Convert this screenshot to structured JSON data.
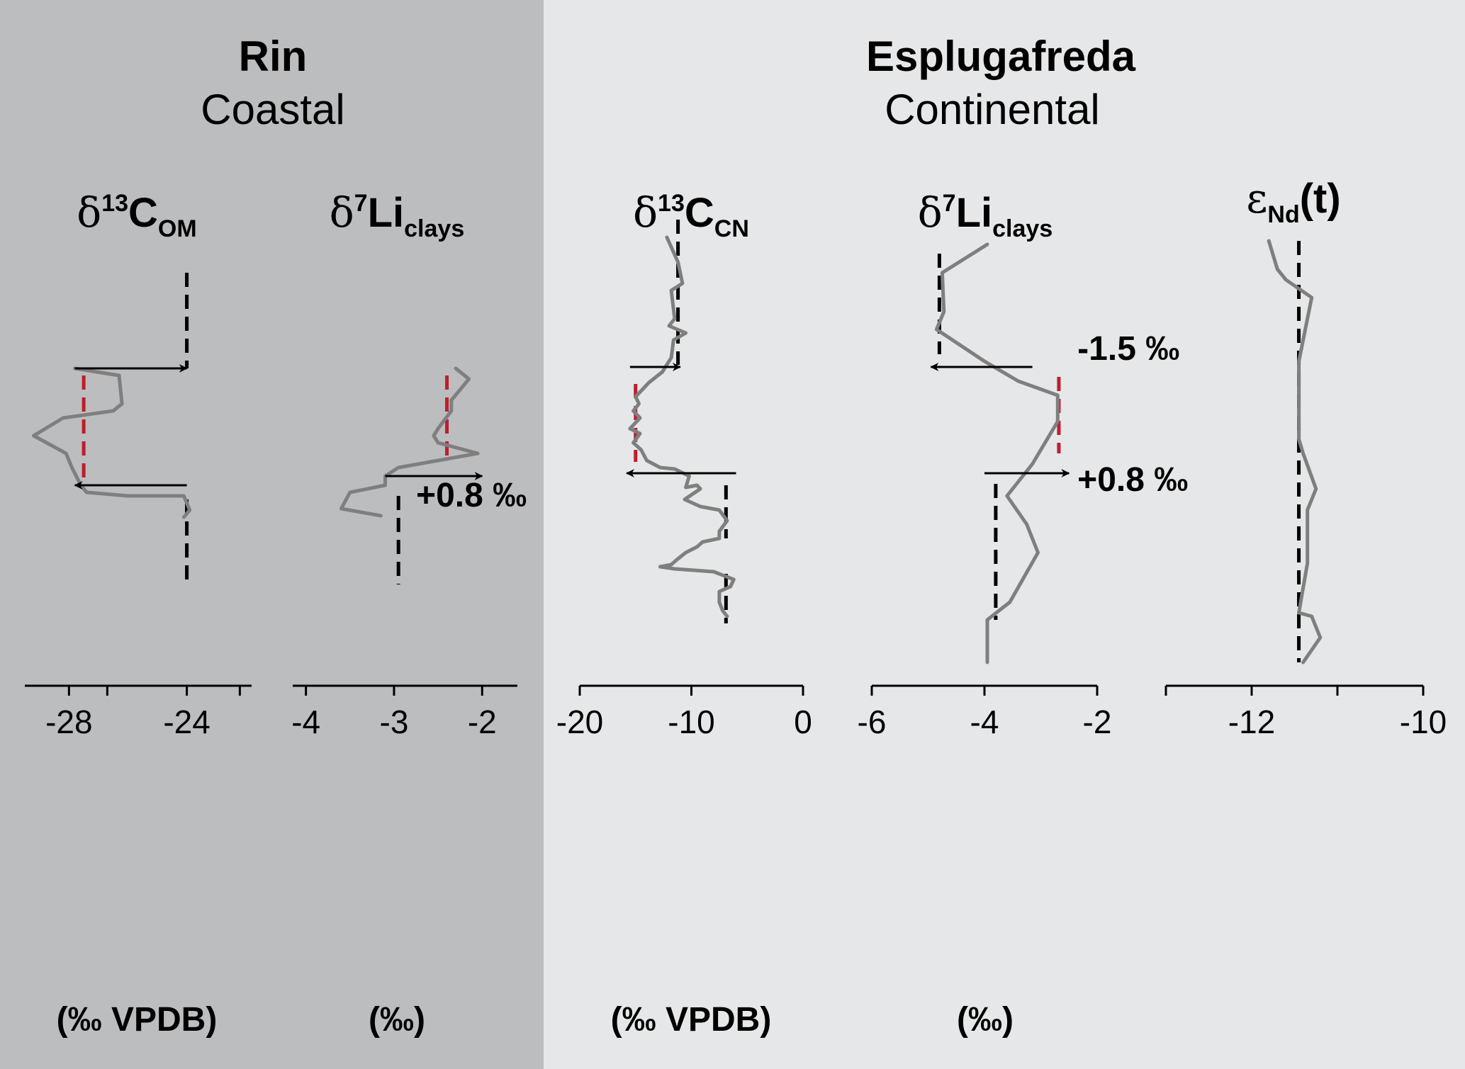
{
  "sites": [
    {
      "name": "Rin",
      "setting": "Coastal",
      "bg": "#bcbdbf"
    },
    {
      "name": "Esplugafreda",
      "setting": "Continental",
      "bg": "#e6e7e8"
    }
  ],
  "colors": {
    "data_line": "#7f7f7f",
    "baseline_dash": "#000000",
    "event_dash": "#be1e2d",
    "arrow": "#000000"
  },
  "chart_data": [
    {
      "type": "line",
      "site": "Rin",
      "title": {
        "prefix": "δ",
        "sup": "13",
        "main": "C",
        "sub": "OM"
      },
      "unit": "(‰ VPDB)",
      "xlim": [
        -29.5,
        -21.8
      ],
      "xticks": [
        -28,
        -26.7,
        -24,
        -22.2
      ],
      "xticklabels": [
        "-28",
        "",
        "-24",
        ""
      ],
      "profile": [
        [
          -27.8,
          520
        ],
        [
          -26.3,
          530
        ],
        [
          -26.2,
          570
        ],
        [
          -26.5,
          580
        ],
        [
          -28.2,
          590
        ],
        [
          -29.2,
          615
        ],
        [
          -28.1,
          640
        ],
        [
          -27.9,
          660
        ],
        [
          -27.6,
          685
        ],
        [
          -27.4,
          695
        ],
        [
          -26.0,
          700
        ],
        [
          -24.1,
          700
        ],
        [
          -23.9,
          720
        ],
        [
          -24.1,
          730
        ]
      ],
      "baselines": [
        {
          "x": -24.0,
          "y": [
            385,
            520
          ],
          "color": "event_dash_black"
        },
        {
          "x": -24.0,
          "y": [
            705,
            825
          ],
          "color": "event_dash_black"
        }
      ],
      "event_lines": [
        {
          "x": -27.5,
          "y": [
            530,
            680
          ]
        }
      ],
      "arrows": [
        {
          "y": 520,
          "from": -27.8,
          "to": -24.0
        },
        {
          "y": 685,
          "from": -24.0,
          "to": -27.8
        }
      ],
      "annotations": []
    },
    {
      "type": "line",
      "site": "Rin",
      "title": {
        "prefix": "δ",
        "sup": "7",
        "main": "Li",
        "sub": "clays"
      },
      "unit": "(‰)",
      "xlim": [
        -4.15,
        -1.6
      ],
      "xticks": [
        -4,
        -3,
        -2
      ],
      "xticklabels": [
        "-4",
        "-3",
        "-2"
      ],
      "profile": [
        [
          -2.3,
          520
        ],
        [
          -2.15,
          535
        ],
        [
          -2.35,
          565
        ],
        [
          -2.35,
          580
        ],
        [
          -2.5,
          605
        ],
        [
          -2.55,
          615
        ],
        [
          -2.5,
          625
        ],
        [
          -2.05,
          640
        ],
        [
          -2.5,
          650
        ],
        [
          -2.95,
          660
        ],
        [
          -3.1,
          672
        ],
        [
          -3.1,
          685
        ],
        [
          -3.5,
          695
        ],
        [
          -3.6,
          718
        ],
        [
          -3.15,
          728
        ]
      ],
      "baselines": [
        {
          "x": -2.95,
          "y": [
            700,
            825
          ]
        }
      ],
      "event_lines": [
        {
          "x": -2.4,
          "y": [
            530,
            645
          ]
        }
      ],
      "arrows": [
        {
          "y": 672,
          "from": -3.1,
          "to": -2.0
        }
      ],
      "annotations": [
        {
          "text": "+0.8 ‰",
          "x": -2.75,
          "y": 715
        }
      ]
    },
    {
      "type": "line",
      "site": "Esplugafreda",
      "title": {
        "prefix": "δ",
        "sup": "13",
        "main": "C",
        "sub": "CN"
      },
      "unit": "(‰ VPDB)",
      "xlim": [
        -20.0,
        0.0
      ],
      "xticks": [
        -20,
        -10,
        0
      ],
      "xticklabels": [
        "-20",
        "-10",
        "0"
      ],
      "profile": [
        [
          -12.2,
          335
        ],
        [
          -11.2,
          370
        ],
        [
          -10.8,
          400
        ],
        [
          -11.8,
          410
        ],
        [
          -11.5,
          450
        ],
        [
          -12.0,
          460
        ],
        [
          -10.5,
          470
        ],
        [
          -11.6,
          480
        ],
        [
          -11.8,
          505
        ],
        [
          -12.6,
          525
        ],
        [
          -13.8,
          540
        ],
        [
          -15.0,
          560
        ],
        [
          -14.7,
          570
        ],
        [
          -15.2,
          580
        ],
        [
          -14.6,
          590
        ],
        [
          -15.5,
          605
        ],
        [
          -14.6,
          612
        ],
        [
          -15.2,
          625
        ],
        [
          -14.5,
          635
        ],
        [
          -14.0,
          650
        ],
        [
          -12.8,
          660
        ],
        [
          -11.5,
          662
        ],
        [
          -10.2,
          672
        ],
        [
          -10.5,
          688
        ],
        [
          -9.5,
          685
        ],
        [
          -9.2,
          690
        ],
        [
          -10.6,
          705
        ],
        [
          -9.2,
          715
        ],
        [
          -7.5,
          720
        ],
        [
          -6.8,
          735
        ],
        [
          -7.5,
          750
        ],
        [
          -7.5,
          760
        ],
        [
          -9.0,
          765
        ],
        [
          -9.5,
          772
        ],
        [
          -10.5,
          780
        ],
        [
          -11.3,
          790
        ],
        [
          -11.8,
          797
        ],
        [
          -12.8,
          800
        ],
        [
          -11.5,
          803
        ],
        [
          -8.0,
          807
        ],
        [
          -6.2,
          818
        ],
        [
          -6.5,
          828
        ],
        [
          -7.5,
          835
        ],
        [
          -7.5,
          850
        ],
        [
          -7.2,
          862
        ],
        [
          -6.8,
          870
        ]
      ],
      "baselines": [
        {
          "x": -11.2,
          "y": [
            310,
            515
          ]
        },
        {
          "x": -6.9,
          "y": [
            685,
            760
          ]
        },
        {
          "x": -6.9,
          "y": [
            810,
            880
          ]
        }
      ],
      "event_lines": [
        {
          "x": -15.0,
          "y": [
            542,
            652
          ]
        }
      ],
      "arrows": [
        {
          "y": 518,
          "from": -15.5,
          "to": -11.0
        },
        {
          "y": 668,
          "from": -6.0,
          "to": -15.8
        }
      ],
      "annotations": []
    },
    {
      "type": "line",
      "site": "Esplugafreda",
      "title": {
        "prefix": "δ",
        "sup": "7",
        "main": "Li",
        "sub": "clays"
      },
      "unit": "(‰)",
      "xlim": [
        -6.0,
        -2.0
      ],
      "xticks": [
        -6,
        -4,
        -2
      ],
      "xticklabels": [
        "-6",
        "-4",
        "-2"
      ],
      "profile": [
        [
          -3.95,
          345
        ],
        [
          -4.75,
          385
        ],
        [
          -4.72,
          440
        ],
        [
          -4.85,
          465
        ],
        [
          -4.0,
          510
        ],
        [
          -3.4,
          538
        ],
        [
          -2.7,
          558
        ],
        [
          -2.7,
          595
        ],
        [
          -3.15,
          655
        ],
        [
          -3.6,
          700
        ],
        [
          -3.25,
          740
        ],
        [
          -3.05,
          780
        ],
        [
          -3.55,
          850
        ],
        [
          -3.95,
          875
        ],
        [
          -3.95,
          935
        ]
      ],
      "baselines": [
        {
          "x": -4.8,
          "y": [
            358,
            500
          ]
        },
        {
          "x": -3.8,
          "y": [
            683,
            875
          ]
        }
      ],
      "event_lines": [
        {
          "x": -2.68,
          "y": [
            532,
            640
          ]
        }
      ],
      "arrows": [
        {
          "y": 518,
          "from": -3.15,
          "to": -4.95
        },
        {
          "y": 668,
          "from": -4.0,
          "to": -2.5
        }
      ],
      "annotations": [
        {
          "text": "-1.5 ‰",
          "x": -2.35,
          "y": 508
        },
        {
          "text": "+0.8 ‰",
          "x": -2.35,
          "y": 693
        }
      ]
    },
    {
      "type": "line",
      "site": "Esplugafreda",
      "title": {
        "prefix": "ε",
        "sup": "",
        "main": "",
        "sub": "Nd",
        "suffix": "(t)"
      },
      "unit": "",
      "xlim": [
        -13.0,
        -10.0
      ],
      "xticks": [
        -13,
        -12,
        -11,
        -10
      ],
      "xticklabels": [
        "",
        "-12",
        "",
        "-10"
      ],
      "profile": [
        [
          -11.8,
          340
        ],
        [
          -11.7,
          380
        ],
        [
          -11.6,
          395
        ],
        [
          -11.3,
          420
        ],
        [
          -11.45,
          510
        ],
        [
          -11.45,
          620
        ],
        [
          -11.4,
          640
        ],
        [
          -11.25,
          690
        ],
        [
          -11.35,
          720
        ],
        [
          -11.35,
          760
        ],
        [
          -11.35,
          795
        ],
        [
          -11.4,
          830
        ],
        [
          -11.45,
          865
        ],
        [
          -11.3,
          870
        ],
        [
          -11.2,
          900
        ],
        [
          -11.4,
          935
        ]
      ],
      "baselines": [
        {
          "x": -11.45,
          "y": [
            340,
            935
          ]
        }
      ],
      "event_lines": [],
      "arrows": [],
      "annotations": []
    }
  ]
}
